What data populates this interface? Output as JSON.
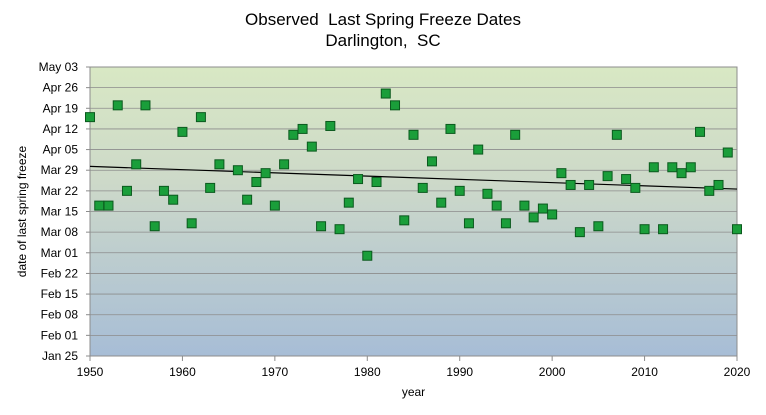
{
  "chart_data": {
    "type": "scatter",
    "title": "Observed  Last Spring Freeze Dates",
    "subtitle": "Darlington,  SC",
    "xlabel": "year",
    "ylabel": "date of last spring freeze",
    "xlim": [
      1950,
      2020
    ],
    "x_ticks": [
      "1950",
      "1960",
      "1970",
      "1980",
      "1990",
      "2000",
      "2010",
      "2020"
    ],
    "ylim_day_of_year": [
      25,
      123
    ],
    "y_ticks": [
      {
        "label": "Jan 25",
        "day": 25
      },
      {
        "label": "Feb 01",
        "day": 32
      },
      {
        "label": "Feb 08",
        "day": 39
      },
      {
        "label": "Feb 15",
        "day": 46
      },
      {
        "label": "Feb 22",
        "day": 53
      },
      {
        "label": "Mar 01",
        "day": 60
      },
      {
        "label": "Mar 08",
        "day": 67
      },
      {
        "label": "Mar 15",
        "day": 74
      },
      {
        "label": "Mar 22",
        "day": 81
      },
      {
        "label": "Mar 29",
        "day": 88
      },
      {
        "label": "Apr 05",
        "day": 95
      },
      {
        "label": "Apr 12",
        "day": 102
      },
      {
        "label": "Apr 19",
        "day": 109
      },
      {
        "label": "Apr 26",
        "day": 116
      },
      {
        "label": "May 03",
        "day": 123
      }
    ],
    "grid": true,
    "marker_color": "#1a9e3a",
    "marker_edge": "#0b5a1e",
    "trend_line": {
      "x": [
        1950,
        2020
      ],
      "y_day": [
        89.3,
        81.6
      ],
      "color": "#000000"
    },
    "points": [
      [
        1950,
        106
      ],
      [
        1951,
        76
      ],
      [
        1952,
        76
      ],
      [
        1953,
        110
      ],
      [
        1954,
        81
      ],
      [
        1955,
        90
      ],
      [
        1956,
        110
      ],
      [
        1957,
        69
      ],
      [
        1958,
        81
      ],
      [
        1959,
        78
      ],
      [
        1960,
        101
      ],
      [
        1961,
        70
      ],
      [
        1962,
        106
      ],
      [
        1963,
        82
      ],
      [
        1964,
        90
      ],
      [
        1965,
        null
      ],
      [
        1966,
        88
      ],
      [
        1967,
        78
      ],
      [
        1968,
        84
      ],
      [
        1969,
        87
      ],
      [
        1970,
        76
      ],
      [
        1971,
        90
      ],
      [
        1972,
        100
      ],
      [
        1973,
        102
      ],
      [
        1974,
        96
      ],
      [
        1975,
        69
      ],
      [
        1976,
        103
      ],
      [
        1977,
        68
      ],
      [
        1978,
        77
      ],
      [
        1979,
        85
      ],
      [
        1980,
        59
      ],
      [
        1981,
        84
      ],
      [
        1982,
        114
      ],
      [
        1983,
        110
      ],
      [
        1984,
        71
      ],
      [
        1985,
        100
      ],
      [
        1986,
        82
      ],
      [
        1987,
        91
      ],
      [
        1988,
        77
      ],
      [
        1989,
        102
      ],
      [
        1990,
        81
      ],
      [
        1991,
        70
      ],
      [
        1992,
        95
      ],
      [
        1993,
        80
      ],
      [
        1994,
        76
      ],
      [
        1995,
        70
      ],
      [
        1996,
        100
      ],
      [
        1997,
        76
      ],
      [
        1998,
        72
      ],
      [
        1999,
        75
      ],
      [
        2000,
        73
      ],
      [
        2001,
        87
      ],
      [
        2002,
        83
      ],
      [
        2003,
        67
      ],
      [
        2004,
        83
      ],
      [
        2005,
        69
      ],
      [
        2006,
        86
      ],
      [
        2007,
        100
      ],
      [
        2008,
        85
      ],
      [
        2009,
        82
      ],
      [
        2010,
        68
      ],
      [
        2011,
        89
      ],
      [
        2012,
        68
      ],
      [
        2013,
        89
      ],
      [
        2014,
        87
      ],
      [
        2015,
        89
      ],
      [
        2016,
        101
      ],
      [
        2017,
        81
      ],
      [
        2018,
        83
      ],
      [
        2019,
        94
      ],
      [
        2020,
        68
      ]
    ]
  }
}
